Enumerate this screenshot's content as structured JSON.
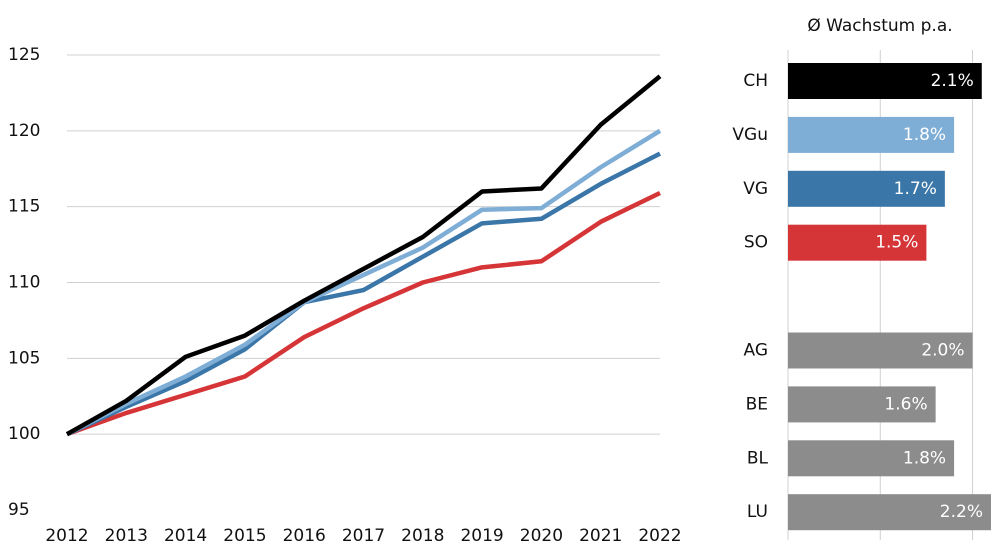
{
  "chart_data": [
    {
      "type": "line",
      "x": [
        2012,
        2013,
        2014,
        2015,
        2016,
        2017,
        2018,
        2019,
        2020,
        2021,
        2022
      ],
      "series": [
        {
          "color": "#d63538",
          "values": [
            100,
            101.4,
            102.6,
            103.8,
            106.4,
            108.3,
            110.0,
            111.0,
            111.4,
            114.0,
            115.9
          ]
        },
        {
          "color": "#3a76a8",
          "values": [
            100,
            101.8,
            103.5,
            105.6,
            108.7,
            109.5,
            111.7,
            113.9,
            114.2,
            116.5,
            118.5
          ]
        },
        {
          "color": "#7eadd6",
          "values": [
            100,
            102.0,
            103.8,
            105.9,
            108.7,
            110.5,
            112.3,
            114.8,
            114.9,
            117.6,
            120.0
          ]
        },
        {
          "color": "#000000",
          "values": [
            100,
            102.2,
            105.1,
            106.5,
            108.8,
            110.9,
            113.0,
            116.0,
            116.2,
            120.4,
            123.6
          ]
        }
      ],
      "xlim": [
        2012,
        2022
      ],
      "ylim": [
        95,
        125
      ],
      "yticks": [
        95,
        100,
        105,
        110,
        115,
        120,
        125
      ],
      "grid": true
    },
    {
      "type": "bar",
      "title": "Ø Wachstum p.a.",
      "categories": [
        "CH",
        "VGu",
        "VG",
        "SO",
        null,
        "AG",
        "BE",
        "BL",
        "LU"
      ],
      "values": [
        2.1,
        1.8,
        1.7,
        1.5,
        null,
        2.0,
        1.6,
        1.8,
        2.2
      ],
      "value_labels": [
        "2.1%",
        "1.8%",
        "1.7%",
        "1.5%",
        null,
        "2.0%",
        "1.6%",
        "1.8%",
        "2.2%"
      ],
      "colors": [
        "#000000",
        "#7eadd6",
        "#3a76a8",
        "#d63538",
        null,
        "#8c8c8c",
        "#8c8c8c",
        "#8c8c8c",
        "#8c8c8c"
      ],
      "xlim": [
        0,
        2.2
      ],
      "xticks": [
        0,
        1,
        2
      ],
      "grid": true
    }
  ]
}
